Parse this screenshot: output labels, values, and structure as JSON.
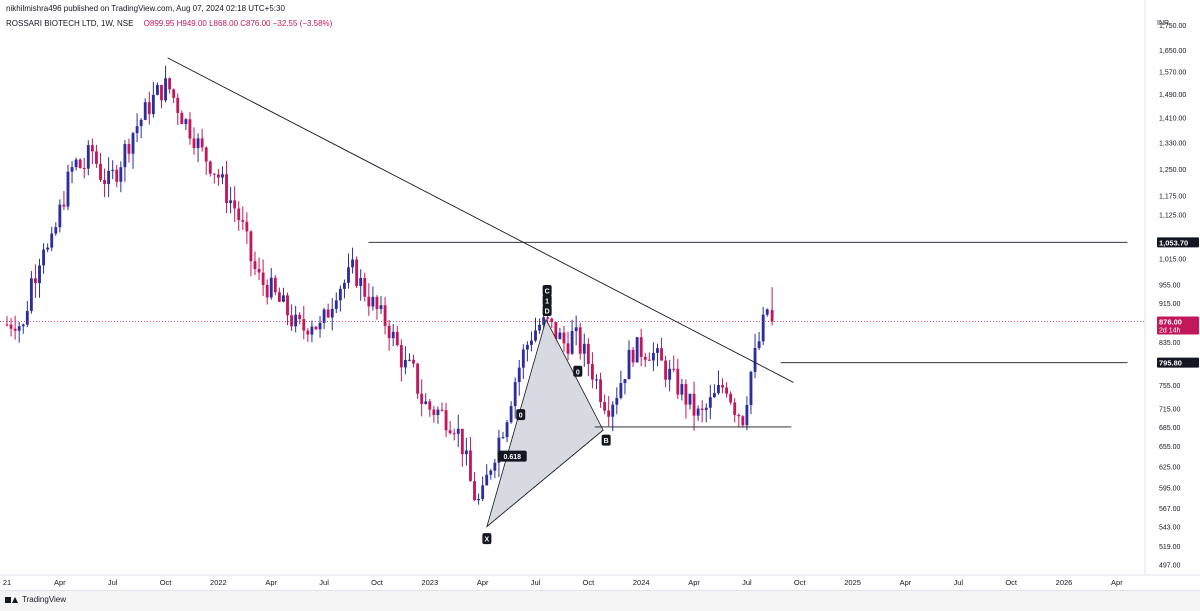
{
  "header": {
    "publisher": "nikhilmishra496 published on TradingView.com, Aug 07, 2024 02:18 UTC+5:30",
    "symbol": "ROSSARI BIOTECH LTD, 1W, NSE",
    "open": "O899.95",
    "high": "H949.00",
    "low": "L868.00",
    "close": "C876.00",
    "change": "−32.55 (−3.58%)"
  },
  "footer": {
    "brand": "TradingView"
  },
  "colors": {
    "up": "#2a2e9e",
    "down": "#c2185b",
    "line": "#131722",
    "pattern_fill": "#d1d4dc"
  },
  "chart_data": {
    "type": "candlestick",
    "currency": "INR",
    "scale": "log",
    "ylim": [
      485,
      1820
    ],
    "y_ticks": [
      497,
      519,
      543,
      567,
      595,
      625,
      655,
      685,
      715,
      755,
      795,
      835,
      875,
      915,
      955,
      1015,
      1053.7,
      1125,
      1175,
      1250,
      1330,
      1410,
      1490,
      1570,
      1650,
      1750
    ],
    "y_tick_labels": [
      "497.00",
      "519.00",
      "543.00",
      "567.00",
      "595.00",
      "625.00",
      "655.00",
      "685.00",
      "715.00",
      "755.00",
      "795.00",
      "835.00",
      "875.00",
      "915.00",
      "955.00",
      "1,015.00",
      "1,053.70",
      "1,125.00",
      "1,175.00",
      "1,250.00",
      "1,330.00",
      "1,410.00",
      "1,490.00",
      "1,570.00",
      "1,650.00",
      "1,750.00"
    ],
    "hidden_tick_labels": [
      "875.00",
      "1,053.70"
    ],
    "x_ticks": [
      {
        "label": "21",
        "t": 2021.0
      },
      {
        "label": "Apr",
        "t": 2021.25
      },
      {
        "label": "Jul",
        "t": 2021.5
      },
      {
        "label": "Oct",
        "t": 2021.75
      },
      {
        "label": "2022",
        "t": 2022.0
      },
      {
        "label": "Apr",
        "t": 2022.25
      },
      {
        "label": "Jul",
        "t": 2022.5
      },
      {
        "label": "Oct",
        "t": 2022.75
      },
      {
        "label": "2023",
        "t": 2023.0
      },
      {
        "label": "Apr",
        "t": 2023.25
      },
      {
        "label": "Jul",
        "t": 2023.5
      },
      {
        "label": "Oct",
        "t": 2023.75
      },
      {
        "label": "2024",
        "t": 2024.0
      },
      {
        "label": "Apr",
        "t": 2024.25
      },
      {
        "label": "Jul",
        "t": 2024.5
      },
      {
        "label": "Oct",
        "t": 2024.75
      },
      {
        "label": "2025",
        "t": 2025.0
      },
      {
        "label": "Apr",
        "t": 2025.25
      },
      {
        "label": "Jul",
        "t": 2025.5
      },
      {
        "label": "Oct",
        "t": 2025.75
      },
      {
        "label": "2026",
        "t": 2026.0
      },
      {
        "label": "Apr",
        "t": 2026.25
      }
    ],
    "price_path": [
      [
        2021.0,
        870
      ],
      [
        2021.04,
        880
      ],
      [
        2021.08,
        860
      ],
      [
        2021.11,
        960
      ],
      [
        2021.14,
        990
      ],
      [
        2021.17,
        1060
      ],
      [
        2021.2,
        1020
      ],
      [
        2021.24,
        1110
      ],
      [
        2021.28,
        1200
      ],
      [
        2021.32,
        1270
      ],
      [
        2021.36,
        1250
      ],
      [
        2021.4,
        1310
      ],
      [
        2021.44,
        1240
      ],
      [
        2021.48,
        1210
      ],
      [
        2021.52,
        1250
      ],
      [
        2021.56,
        1310
      ],
      [
        2021.6,
        1370
      ],
      [
        2021.64,
        1410
      ],
      [
        2021.68,
        1460
      ],
      [
        2021.72,
        1500
      ],
      [
        2021.76,
        1520
      ],
      [
        2021.8,
        1460
      ],
      [
        2021.84,
        1400
      ],
      [
        2021.88,
        1360
      ],
      [
        2021.92,
        1300
      ],
      [
        2021.96,
        1270
      ],
      [
        2022.0,
        1230
      ],
      [
        2022.04,
        1180
      ],
      [
        2022.08,
        1140
      ],
      [
        2022.12,
        1080
      ],
      [
        2022.16,
        1000
      ],
      [
        2022.2,
        960
      ],
      [
        2022.24,
        950
      ],
      [
        2022.28,
        920
      ],
      [
        2022.32,
        900
      ],
      [
        2022.36,
        870
      ],
      [
        2022.4,
        860
      ],
      [
        2022.44,
        880
      ],
      [
        2022.48,
        860
      ],
      [
        2022.52,
        900
      ],
      [
        2022.56,
        950
      ],
      [
        2022.6,
        960
      ],
      [
        2022.64,
        990
      ],
      [
        2022.68,
        950
      ],
      [
        2022.72,
        920
      ],
      [
        2022.76,
        890
      ],
      [
        2022.8,
        870
      ],
      [
        2022.84,
        830
      ],
      [
        2022.88,
        790
      ],
      [
        2022.92,
        780
      ],
      [
        2022.96,
        730
      ],
      [
        2023.0,
        715
      ],
      [
        2023.04,
        710
      ],
      [
        2023.08,
        700
      ],
      [
        2023.12,
        690
      ],
      [
        2023.16,
        650
      ],
      [
        2023.2,
        590
      ],
      [
        2023.24,
        570
      ],
      [
        2023.28,
        620
      ],
      [
        2023.32,
        660
      ],
      [
        2023.36,
        700
      ],
      [
        2023.4,
        760
      ],
      [
        2023.44,
        810
      ],
      [
        2023.48,
        850
      ],
      [
        2023.52,
        870
      ],
      [
        2023.56,
        870
      ],
      [
        2023.6,
        850
      ],
      [
        2023.64,
        830
      ],
      [
        2023.68,
        850
      ],
      [
        2023.72,
        820
      ],
      [
        2023.76,
        790
      ],
      [
        2023.8,
        750
      ],
      [
        2023.84,
        720
      ],
      [
        2023.88,
        740
      ],
      [
        2023.92,
        780
      ],
      [
        2023.96,
        820
      ],
      [
        2024.0,
        820
      ],
      [
        2024.04,
        820
      ],
      [
        2024.08,
        800
      ],
      [
        2024.12,
        780
      ],
      [
        2024.16,
        760
      ],
      [
        2024.2,
        740
      ],
      [
        2024.24,
        715
      ],
      [
        2024.28,
        700
      ],
      [
        2024.32,
        720
      ],
      [
        2024.36,
        740
      ],
      [
        2024.4,
        760
      ],
      [
        2024.44,
        720
      ],
      [
        2024.48,
        700
      ],
      [
        2024.52,
        780
      ],
      [
        2024.56,
        840
      ],
      [
        2024.6,
        909
      ]
    ],
    "last_candle": {
      "open": 899.95,
      "high": 949.0,
      "low": 868.0,
      "close": 876.0
    },
    "lines": [
      {
        "name": "downtrend",
        "from": [
          2021.76,
          1620
        ],
        "to": [
          2024.72,
          760
        ]
      },
      {
        "name": "resistance-1053",
        "from": [
          2022.71,
          1053.7
        ],
        "to": [
          2026.3,
          1053.7
        ]
      },
      {
        "name": "support-795",
        "from": [
          2024.66,
          795.8
        ],
        "to": [
          2026.3,
          795.8
        ]
      },
      {
        "name": "support-685",
        "from": [
          2023.78,
          685
        ],
        "to": [
          2024.71,
          685
        ]
      }
    ],
    "harmonic": {
      "X": {
        "t": 2023.27,
        "price": 543
      },
      "A": {
        "t": 2023.55,
        "price": 880
      },
      "B": {
        "t": 2023.82,
        "price": 680
      },
      "C": {
        "t": 2023.555,
        "price": 880
      },
      "D": {
        "t": 2023.555,
        "price": 880
      },
      "ratio_label": "0.618",
      "ratio_values": [
        "0",
        "0"
      ]
    },
    "price_labels": [
      {
        "value": "1,053.70",
        "price": 1053.7,
        "style": "dark"
      },
      {
        "value": "876.00",
        "price": 876.0,
        "style": "down",
        "subtext": "2d 14h"
      },
      {
        "value": "795.80",
        "price": 795.8,
        "style": "dark"
      }
    ],
    "current_price": 876.0
  }
}
